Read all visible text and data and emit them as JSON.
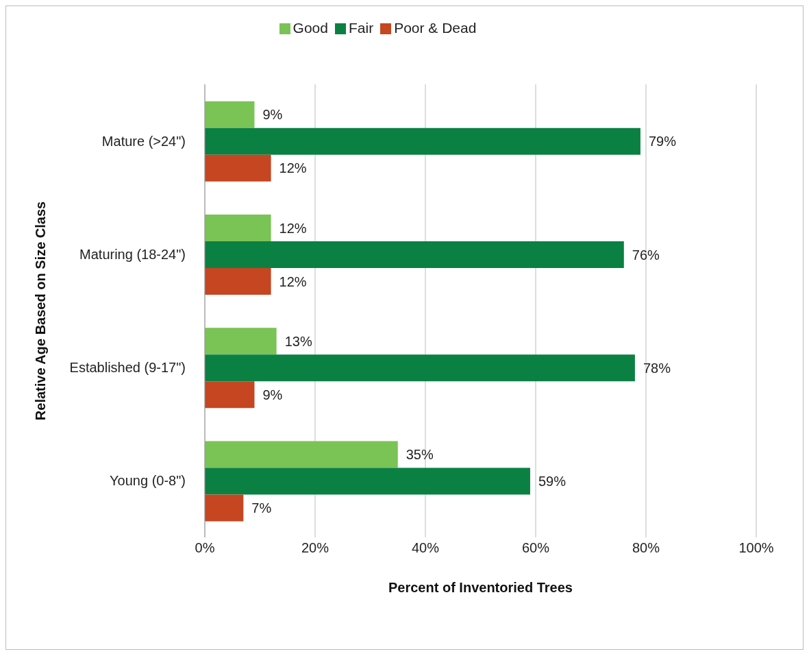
{
  "chart_data": {
    "type": "bar",
    "orientation": "horizontal",
    "xlabel": "Percent of Inventoried Trees",
    "ylabel": "Relative Age Based on Size Class",
    "categories": [
      "Mature (>24\")",
      "Maturing (18-24\")",
      "Established (9-17\")",
      "Young (0-8\")"
    ],
    "series": [
      {
        "name": "Good",
        "color": "#7ac355",
        "values": [
          9,
          12,
          13,
          35
        ],
        "value_labels": [
          "9%",
          "12%",
          "13%",
          "35%"
        ]
      },
      {
        "name": "Fair",
        "color": "#0b8043",
        "values": [
          79,
          76,
          78,
          59
        ],
        "value_labels": [
          "79%",
          "76%",
          "78%",
          "59%"
        ]
      },
      {
        "name": "Poor & Dead",
        "color": "#c54620",
        "values": [
          12,
          12,
          9,
          7
        ],
        "value_labels": [
          "12%",
          "12%",
          "9%",
          "7%"
        ]
      }
    ],
    "xlim": [
      0,
      100
    ],
    "xticks": [
      {
        "value": 0,
        "label": "0%"
      },
      {
        "value": 20,
        "label": "20%"
      },
      {
        "value": 40,
        "label": "40%"
      },
      {
        "value": 60,
        "label": "60%"
      },
      {
        "value": 80,
        "label": "80%"
      },
      {
        "value": 100,
        "label": "100%"
      }
    ],
    "grid": "x",
    "legend": "top"
  }
}
